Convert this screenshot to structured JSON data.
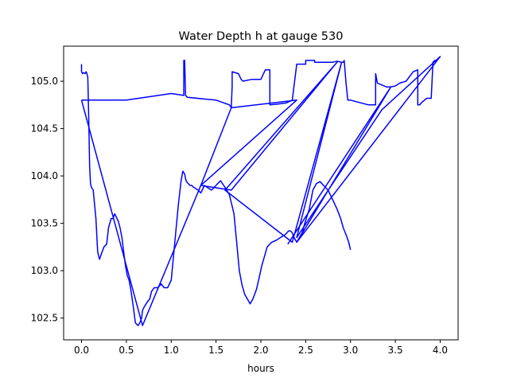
{
  "chart_data": {
    "type": "line",
    "title": "Water Depth h at gauge 530",
    "xlabel": "hours",
    "ylabel": "",
    "xlim": [
      -0.2,
      4.2
    ],
    "ylim": [
      102.27,
      105.37
    ],
    "xticks": [
      0.0,
      0.5,
      1.0,
      1.5,
      2.0,
      2.5,
      3.0,
      3.5,
      4.0
    ],
    "xtick_labels": [
      "0.0",
      "0.5",
      "1.0",
      "1.5",
      "2.0",
      "2.5",
      "3.0",
      "3.5",
      "4.0"
    ],
    "yticks": [
      102.5,
      103.0,
      103.5,
      104.0,
      104.5,
      105.0
    ],
    "ytick_labels": [
      "102.5",
      "103.0",
      "103.5",
      "104.0",
      "104.5",
      "105.0"
    ],
    "grid": false,
    "legend": null,
    "line_color": "#0000ff",
    "series": [
      {
        "x": [
          0.0,
          0.0,
          0.01,
          0.02,
          0.04,
          0.05,
          0.06,
          0.07,
          0.08,
          0.09,
          0.1,
          0.11,
          0.13,
          0.16,
          0.18,
          0.2,
          0.23,
          0.25,
          0.28,
          0.3,
          0.33,
          0.35,
          0.37,
          0.39,
          0.41,
          0.43,
          0.45,
          0.47,
          0.49,
          0.51,
          0.53,
          0.55,
          0.58,
          0.6,
          0.63,
          0.65,
          0.67,
          0.68,
          0.7,
          0.72,
          0.74,
          0.76,
          0.78,
          0.81,
          0.85,
          0.89,
          0.92,
          0.96,
          1.0,
          1.04,
          1.08,
          1.11,
          1.13,
          1.15,
          1.16,
          1.17,
          1.19,
          1.21,
          1.23,
          1.25,
          1.3,
          1.33,
          1.37,
          1.4,
          1.45,
          1.5,
          1.55,
          1.6,
          1.65,
          1.7,
          1.73,
          1.76,
          1.79,
          1.82,
          1.85,
          1.88,
          1.91,
          1.95,
          1.98,
          2.01,
          2.04,
          2.07,
          2.12,
          2.17,
          2.22,
          2.27,
          2.31,
          2.33,
          2.35,
          2.37,
          2.4,
          2.43,
          2.46,
          2.49,
          2.54,
          2.58,
          2.62,
          2.66,
          2.7,
          2.75,
          2.8,
          2.85,
          2.89,
          2.92,
          2.95,
          2.98,
          3.0
        ],
        "y": [
          105.18,
          105.1,
          105.08,
          105.09,
          105.08,
          105.1,
          105.08,
          105.04,
          104.6,
          104.1,
          103.92,
          103.88,
          103.85,
          103.55,
          103.2,
          103.12,
          103.2,
          103.25,
          103.28,
          103.45,
          103.55,
          103.55,
          103.6,
          103.56,
          103.52,
          103.45,
          103.35,
          103.2,
          103.05,
          102.95,
          102.9,
          102.8,
          102.6,
          102.45,
          102.42,
          102.45,
          102.5,
          102.58,
          102.62,
          102.65,
          102.68,
          102.7,
          102.78,
          102.82,
          102.82,
          102.86,
          102.82,
          102.82,
          102.9,
          103.3,
          103.7,
          103.95,
          104.05,
          104.02,
          103.97,
          103.94,
          103.92,
          103.9,
          103.9,
          103.88,
          103.85,
          103.82,
          103.9,
          103.88,
          103.85,
          103.9,
          103.95,
          103.88,
          103.8,
          103.6,
          103.3,
          103.0,
          102.85,
          102.75,
          102.7,
          102.65,
          102.7,
          102.8,
          102.92,
          103.05,
          103.15,
          103.25,
          103.3,
          103.32,
          103.35,
          103.38,
          103.42,
          103.42,
          103.4,
          103.35,
          103.3,
          103.35,
          103.4,
          103.5,
          103.65,
          103.85,
          103.92,
          103.94,
          103.9,
          103.85,
          103.75,
          103.65,
          103.55,
          103.45,
          103.38,
          103.3,
          103.22
        ]
      },
      {
        "x": [
          0.0,
          0.5,
          1.0,
          1.14,
          1.14,
          1.15,
          1.16,
          1.16,
          1.18,
          1.5,
          1.65,
          1.67,
          1.68,
          1.68,
          1.75,
          1.78,
          1.8,
          1.9,
          2.0,
          2.05,
          2.1,
          2.1,
          2.2,
          2.28,
          2.33,
          2.35,
          2.4,
          2.5,
          2.5,
          2.6,
          2.6,
          2.7,
          2.8,
          2.85,
          2.9,
          2.92,
          2.93,
          2.95,
          2.97,
          3.0,
          3.2,
          3.28,
          3.28,
          3.3,
          3.4,
          3.45,
          3.5,
          3.55,
          3.62,
          3.7,
          3.75,
          3.75,
          3.77,
          3.8,
          3.85,
          3.9,
          3.92,
          3.94,
          3.96,
          4.0
        ],
        "y": [
          104.8,
          104.8,
          104.87,
          104.85,
          105.22,
          105.22,
          104.85,
          104.85,
          104.83,
          104.8,
          104.75,
          104.72,
          104.95,
          105.1,
          105.08,
          105.02,
          105.0,
          105.02,
          105.02,
          105.12,
          105.12,
          104.75,
          104.76,
          104.77,
          104.79,
          104.8,
          105.18,
          105.18,
          105.22,
          105.22,
          105.2,
          105.2,
          105.2,
          105.21,
          105.2,
          105.2,
          105.22,
          104.98,
          104.8,
          104.8,
          104.75,
          104.75,
          105.08,
          104.98,
          104.94,
          104.94,
          104.95,
          104.98,
          105.0,
          105.1,
          105.12,
          104.75,
          104.75,
          104.78,
          104.82,
          104.82,
          105.2,
          105.22,
          105.22,
          105.26
        ]
      },
      {
        "x": [
          0.0,
          0.68,
          1.33,
          1.67,
          2.4,
          1.33,
          1.67,
          2.85,
          1.6,
          2.35,
          2.9,
          2.4,
          3.35,
          4.0,
          2.4,
          3.45,
          2.3
        ],
        "y": [
          104.8,
          102.42,
          103.9,
          104.72,
          104.8,
          103.9,
          103.85,
          105.2,
          103.85,
          103.3,
          105.2,
          103.35,
          104.7,
          105.26,
          103.3,
          104.94,
          103.28
        ]
      }
    ]
  }
}
